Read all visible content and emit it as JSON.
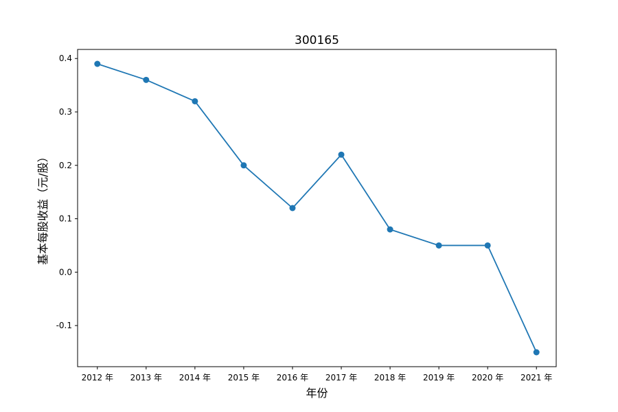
{
  "chart_data": {
    "type": "line",
    "title": "300165",
    "xlabel": "年份",
    "ylabel": "基本每股收益（元/股）",
    "categories": [
      "2012 年",
      "2013 年",
      "2014 年",
      "2015 年",
      "2016 年",
      "2017 年",
      "2018 年",
      "2019 年",
      "2020 年",
      "2021 年"
    ],
    "series": [
      {
        "values": [
          0.39,
          0.36,
          0.32,
          0.2,
          0.12,
          0.22,
          0.08,
          0.05,
          0.05,
          -0.15
        ]
      }
    ],
    "yticks": [
      -0.1,
      0.0,
      0.1,
      0.2,
      0.3,
      0.4
    ],
    "ytick_labels": [
      "-0.1",
      "0.0",
      "0.1",
      "0.2",
      "0.3",
      "0.4"
    ],
    "ylim": [
      -0.177,
      0.417
    ],
    "grid": false,
    "line_color": "#1f77b4",
    "marker": "circle"
  }
}
